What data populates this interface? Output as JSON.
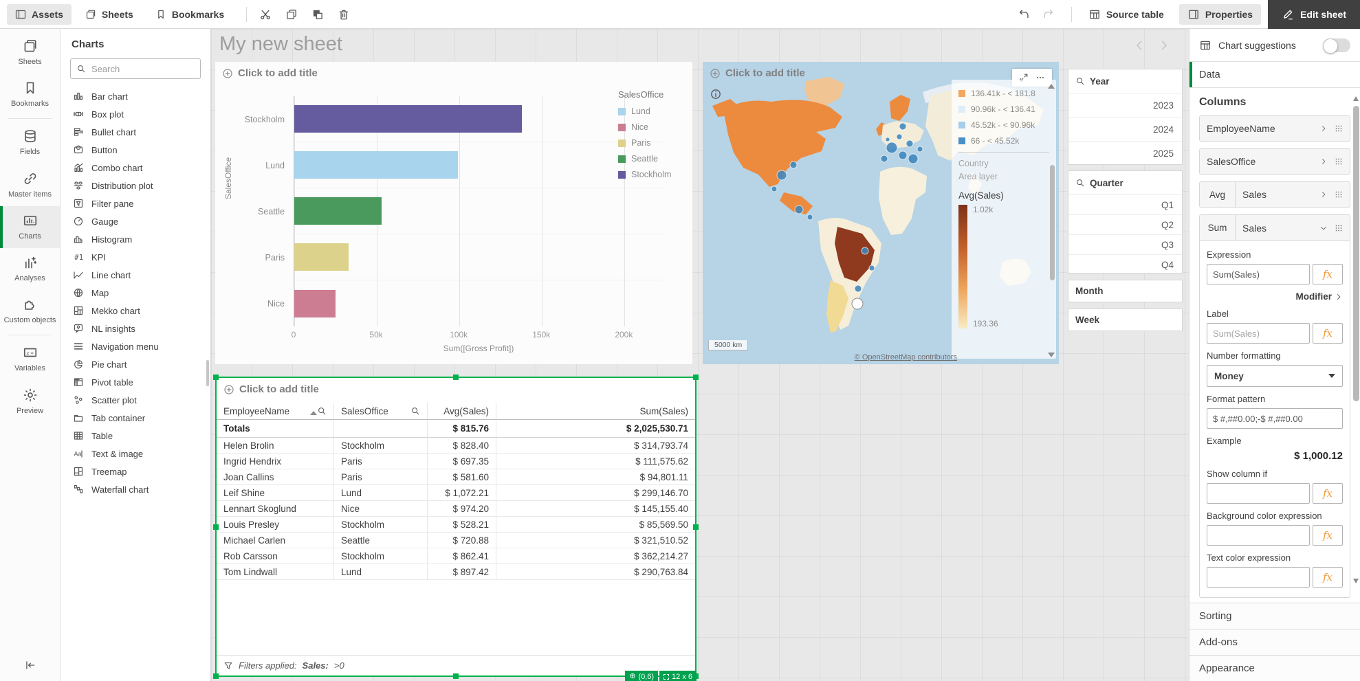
{
  "topbar": {
    "tabs": [
      {
        "id": "assets",
        "label": "Assets",
        "icon": "panel-left",
        "active": true
      },
      {
        "id": "sheets",
        "label": "Sheets",
        "icon": "sheet-stack",
        "active": false
      },
      {
        "id": "bookmarks",
        "label": "Bookmarks",
        "icon": "bookmark",
        "active": false
      }
    ],
    "tools": [
      {
        "id": "cut",
        "icon": "cut"
      },
      {
        "id": "copy",
        "icon": "copy"
      },
      {
        "id": "paste",
        "icon": "paste"
      },
      {
        "id": "delete",
        "icon": "trash"
      }
    ],
    "history": [
      {
        "id": "undo",
        "icon": "undo",
        "enabled": true
      },
      {
        "id": "redo",
        "icon": "redo",
        "enabled": false
      }
    ],
    "source_table_label": "Source table",
    "properties_label": "Properties",
    "edit_sheet_label": "Edit sheet"
  },
  "nav_rail": {
    "items": [
      {
        "id": "sheets",
        "label": "Sheets",
        "icon": "sheet-stack"
      },
      {
        "id": "bookmarks",
        "label": "Bookmarks",
        "icon": "bookmark"
      },
      {
        "id": "fields",
        "label": "Fields",
        "icon": "database"
      },
      {
        "id": "master-items",
        "label": "Master items",
        "icon": "link"
      },
      {
        "id": "charts",
        "label": "Charts",
        "icon": "charts-rail",
        "active": true
      },
      {
        "id": "analyses",
        "label": "Analyses",
        "icon": "analyses"
      },
      {
        "id": "custom-objects",
        "label": "Custom objects",
        "icon": "puzzle"
      },
      {
        "id": "variables",
        "label": "Variables",
        "icon": "variables"
      },
      {
        "id": "preview",
        "label": "Preview",
        "icon": "gear"
      }
    ],
    "divider_after": [
      "bookmarks",
      "custom-objects"
    ]
  },
  "charts_panel": {
    "title": "Charts",
    "search_placeholder": "Search",
    "items": [
      {
        "label": "Bar chart",
        "icon": "bar-chart"
      },
      {
        "label": "Box plot",
        "icon": "box-plot"
      },
      {
        "label": "Bullet chart",
        "icon": "bullet-chart"
      },
      {
        "label": "Button",
        "icon": "button"
      },
      {
        "label": "Combo chart",
        "icon": "combo-chart"
      },
      {
        "label": "Distribution plot",
        "icon": "distribution-plot"
      },
      {
        "label": "Filter pane",
        "icon": "filter-pane"
      },
      {
        "label": "Gauge",
        "icon": "gauge"
      },
      {
        "label": "Histogram",
        "icon": "histogram"
      },
      {
        "label": "KPI",
        "icon": "kpi"
      },
      {
        "label": "Line chart",
        "icon": "line-chart"
      },
      {
        "label": "Map",
        "icon": "map-globe"
      },
      {
        "label": "Mekko chart",
        "icon": "mekko-chart"
      },
      {
        "label": "NL insights",
        "icon": "nl-insights"
      },
      {
        "label": "Navigation menu",
        "icon": "nav-menu"
      },
      {
        "label": "Pie chart",
        "icon": "pie-chart"
      },
      {
        "label": "Pivot table",
        "icon": "pivot-table"
      },
      {
        "label": "Scatter plot",
        "icon": "scatter-plot"
      },
      {
        "label": "Tab container",
        "icon": "tab-container"
      },
      {
        "label": "Table",
        "icon": "table-grid"
      },
      {
        "label": "Text & image",
        "icon": "text-image"
      },
      {
        "label": "Treemap",
        "icon": "treemap"
      },
      {
        "label": "Waterfall chart",
        "icon": "waterfall-chart"
      }
    ]
  },
  "canvas": {
    "sheet_title": "My new sheet"
  },
  "bar_card": {
    "title_placeholder": "Click to add title"
  },
  "map_card": {
    "title_placeholder": "Click to add title",
    "ranges": [
      {
        "label": "136.41k - < 181.8",
        "color": "#f3a65c"
      },
      {
        "label": "90.96k - < 136.41",
        "color": "#ddeef9"
      },
      {
        "label": "45.52k - < 90.96k",
        "color": "#a6cde9"
      },
      {
        "label": "66 - < 45.52k",
        "color": "#4a90c8"
      }
    ],
    "layer_line1": "Country",
    "layer_line2": "Area layer",
    "gradient_title": "Avg(Sales)",
    "gradient_max": "1.02k",
    "gradient_min": "193.36",
    "scale_label": "5000 km",
    "attribution": "© OpenStreetMap contributors"
  },
  "filters": {
    "year": {
      "title": "Year",
      "values": [
        "2023",
        "2024",
        "2025"
      ]
    },
    "quarter": {
      "title": "Quarter",
      "values": [
        "Q1",
        "Q2",
        "Q3",
        "Q4"
      ]
    },
    "month": {
      "title": "Month"
    },
    "week": {
      "title": "Week"
    }
  },
  "table_card": {
    "title_placeholder": "Click to add title",
    "columns": [
      {
        "label": "EmployeeName",
        "sorted": "asc",
        "searchable": true,
        "align": "left"
      },
      {
        "label": "SalesOffice",
        "searchable": true,
        "align": "left"
      },
      {
        "label": "Avg(Sales)",
        "align": "right"
      },
      {
        "label": "Sum(Sales)",
        "align": "right"
      }
    ],
    "totals": [
      "Totals",
      "",
      "$ 815.76",
      "$ 2,025,530.71"
    ],
    "rows": [
      [
        "Helen Brolin",
        "Stockholm",
        "$ 828.40",
        "$ 314,793.74"
      ],
      [
        "Ingrid Hendrix",
        "Paris",
        "$ 697.35",
        "$ 111,575.62"
      ],
      [
        "Joan Callins",
        "Paris",
        "$ 581.60",
        "$ 94,801.11"
      ],
      [
        "Leif Shine",
        "Lund",
        "$ 1,072.21",
        "$ 299,146.70"
      ],
      [
        "Lennart Skoglund",
        "Nice",
        "$ 974.20",
        "$ 145,155.40"
      ],
      [
        "Louis Presley",
        "Stockholm",
        "$ 528.21",
        "$ 85,569.50"
      ],
      [
        "Michael Carlen",
        "Seattle",
        "$ 720.88",
        "$ 321,510.52"
      ],
      [
        "Rob Carsson",
        "Stockholm",
        "$ 862.41",
        "$ 362,214.27"
      ],
      [
        "Tom Lindwall",
        "Lund",
        "$ 897.42",
        "$ 290,763.84"
      ]
    ],
    "footer_prefix": "Filters applied:",
    "footer_field": "Sales:",
    "footer_condition": ">0",
    "badge_position": "(0,6)",
    "badge_size": "12 x 6"
  },
  "properties": {
    "chart_suggestions_label": "Chart suggestions",
    "data_tab_label": "Data",
    "columns_heading": "Columns",
    "simple_columns": [
      {
        "label": "EmployeeName"
      },
      {
        "label": "SalesOffice"
      },
      {
        "prefix": "Avg",
        "label": "Sales"
      }
    ],
    "expanded_column": {
      "prefix": "Sum",
      "label": "Sales"
    },
    "expression_label": "Expression",
    "expression_value": "Sum(Sales)",
    "modifier_label": "Modifier",
    "label_label": "Label",
    "label_placeholder": "Sum(Sales)",
    "number_formatting_label": "Number formatting",
    "number_formatting_value": "Money",
    "format_pattern_label": "Format pattern",
    "format_pattern_value": "$ #,##0.00;-$ #,##0.00",
    "example_label": "Example",
    "example_value": "$ 1,000.12",
    "show_column_if_label": "Show column if",
    "background_color_label": "Background color expression",
    "text_color_label": "Text color expression",
    "sections": [
      "Sorting",
      "Add-ons",
      "Appearance"
    ]
  },
  "colors": {
    "selection_green": "#00b24c",
    "badge_green": "#00a14f",
    "rail_active_green": "#008a3c",
    "fx_orange": "#ef9c38"
  },
  "chart_data": [
    {
      "type": "bar",
      "orientation": "horizontal",
      "title": "",
      "xlabel": "Sum([Gross Profit])",
      "ylabel": "SalesOffice",
      "categories": [
        "Stockholm",
        "Lund",
        "Seattle",
        "Paris",
        "Nice"
      ],
      "values": [
        138000,
        99000,
        53000,
        33000,
        25000
      ],
      "xlim": [
        0,
        224000
      ],
      "xticks": [
        {
          "label": "0",
          "value": 0
        },
        {
          "label": "50k",
          "value": 50000
        },
        {
          "label": "100k",
          "value": 100000
        },
        {
          "label": "150k",
          "value": 150000
        },
        {
          "label": "200k",
          "value": 200000
        }
      ],
      "colors": {
        "Stockholm": "#655c9f",
        "Lund": "#a9d4ee",
        "Seattle": "#4a9a5d",
        "Paris": "#dcd28b",
        "Nice": "#cd7d92"
      },
      "legend": {
        "title": "SalesOffice",
        "entries": [
          "Lund",
          "Nice",
          "Paris",
          "Seattle",
          "Stockholm"
        ],
        "position": "right"
      },
      "grid": true
    },
    {
      "type": "map",
      "layer": "Country Area layer",
      "measure": "Avg(Sales)",
      "color_scale": {
        "max_label": "1.02k",
        "min_label": "193.36"
      },
      "bubble_ranges": [
        "136.41k - < 181.8",
        "90.96k - < 136.41",
        "45.52k - < 90.96k",
        "66 - < 45.52k"
      ],
      "scale_bar": "5000 km",
      "attribution": "© OpenStreetMap contributors"
    },
    {
      "type": "table",
      "columns": [
        "EmployeeName",
        "SalesOffice",
        "Avg(Sales)",
        "Sum(Sales)"
      ],
      "totals": [
        "Totals",
        "",
        "$ 815.76",
        "$ 2,025,530.71"
      ],
      "rows": [
        [
          "Helen Brolin",
          "Stockholm",
          "$ 828.40",
          "$ 314,793.74"
        ],
        [
          "Ingrid Hendrix",
          "Paris",
          "$ 697.35",
          "$ 111,575.62"
        ],
        [
          "Joan Callins",
          "Paris",
          "$ 581.60",
          "$ 94,801.11"
        ],
        [
          "Leif Shine",
          "Lund",
          "$ 1,072.21",
          "$ 299,146.70"
        ],
        [
          "Lennart Skoglund",
          "Nice",
          "$ 974.20",
          "$ 145,155.40"
        ],
        [
          "Louis Presley",
          "Stockholm",
          "$ 528.21",
          "$ 85,569.50"
        ],
        [
          "Michael Carlen",
          "Seattle",
          "$ 720.88",
          "$ 321,510.52"
        ],
        [
          "Rob Carsson",
          "Stockholm",
          "$ 862.41",
          "$ 362,214.27"
        ],
        [
          "Tom Lindwall",
          "Lund",
          "$ 897.42",
          "$ 290,763.84"
        ]
      ]
    }
  ]
}
